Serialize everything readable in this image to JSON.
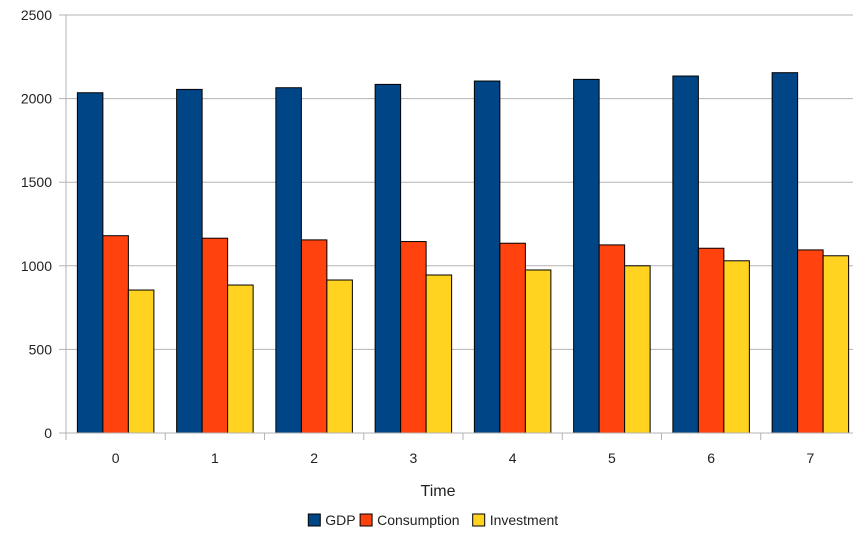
{
  "chart_data": {
    "type": "bar",
    "title": "",
    "xlabel": "Time",
    "ylabel": "",
    "categories": [
      "0",
      "1",
      "2",
      "3",
      "4",
      "5",
      "6",
      "7"
    ],
    "series": [
      {
        "name": "GDP",
        "color": "#004586",
        "values": [
          2035,
          2055,
          2065,
          2085,
          2105,
          2115,
          2135,
          2155
        ]
      },
      {
        "name": "Consumption",
        "color": "#ff420e",
        "values": [
          1180,
          1165,
          1155,
          1145,
          1135,
          1125,
          1105,
          1095
        ]
      },
      {
        "name": "Investment",
        "color": "#ffd320",
        "values": [
          855,
          885,
          915,
          945,
          975,
          1000,
          1030,
          1060
        ]
      }
    ],
    "ylim": [
      0,
      2500
    ],
    "yticks": [
      0,
      500,
      1000,
      1500,
      2000,
      2500
    ],
    "grid": true,
    "legend": "bottom"
  }
}
